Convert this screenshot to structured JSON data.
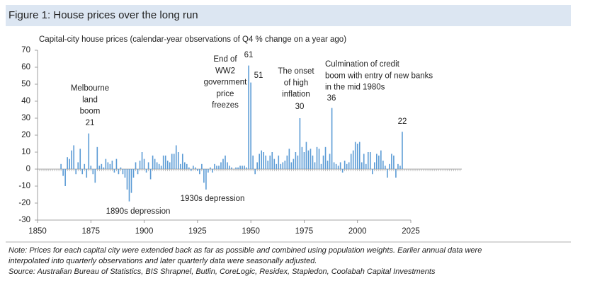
{
  "figure_title": "Figure 1: House prices over the long run",
  "chart_data": {
    "type": "bar",
    "subtitle": "Capital-city house prices (calendar-year observations of Q4 % change on a year ago)",
    "x": [
      1861,
      1862,
      1863,
      1864,
      1865,
      1866,
      1867,
      1868,
      1869,
      1870,
      1871,
      1872,
      1873,
      1874,
      1875,
      1876,
      1877,
      1878,
      1879,
      1880,
      1881,
      1882,
      1883,
      1884,
      1885,
      1886,
      1887,
      1888,
      1889,
      1890,
      1891,
      1892,
      1893,
      1894,
      1895,
      1896,
      1897,
      1898,
      1899,
      1900,
      1901,
      1902,
      1903,
      1904,
      1905,
      1906,
      1907,
      1908,
      1909,
      1910,
      1911,
      1912,
      1913,
      1914,
      1915,
      1916,
      1917,
      1918,
      1919,
      1920,
      1921,
      1922,
      1923,
      1924,
      1925,
      1926,
      1927,
      1928,
      1929,
      1930,
      1931,
      1932,
      1933,
      1934,
      1935,
      1936,
      1937,
      1938,
      1939,
      1940,
      1941,
      1942,
      1943,
      1944,
      1945,
      1946,
      1947,
      1948,
      1949,
      1950,
      1951,
      1952,
      1953,
      1954,
      1955,
      1956,
      1957,
      1958,
      1959,
      1960,
      1961,
      1962,
      1963,
      1964,
      1965,
      1966,
      1967,
      1968,
      1969,
      1970,
      1971,
      1972,
      1973,
      1974,
      1975,
      1976,
      1977,
      1978,
      1979,
      1980,
      1981,
      1982,
      1983,
      1984,
      1985,
      1986,
      1987,
      1988,
      1989,
      1990,
      1991,
      1992,
      1993,
      1994,
      1995,
      1996,
      1997,
      1998,
      1999,
      2000,
      2001,
      2002,
      2003,
      2004,
      2005,
      2006,
      2007,
      2008,
      2009,
      2010,
      2011,
      2012,
      2013,
      2014,
      2015,
      2016,
      2017,
      2018,
      2019,
      2020,
      2021
    ],
    "values": [
      3,
      -4,
      -10,
      7,
      6,
      11,
      14,
      -3,
      4,
      12,
      -3,
      3,
      -5,
      21,
      2,
      -3,
      -8,
      13,
      2,
      3,
      1,
      6,
      4,
      3,
      5,
      -2,
      6,
      -3,
      1,
      -3,
      -5,
      -12,
      -19,
      -14,
      -5,
      4,
      -3,
      5,
      10,
      6,
      -2,
      4,
      -6,
      8,
      6,
      4,
      3,
      2,
      8,
      8,
      5,
      4,
      9,
      9,
      14,
      10,
      3,
      9,
      4,
      3,
      1,
      -1,
      2,
      1,
      -1,
      -3,
      3,
      -8,
      -12,
      -2,
      1,
      -2,
      3,
      2,
      2,
      4,
      6,
      8,
      4,
      2,
      1,
      0,
      1,
      1,
      2,
      2,
      2,
      1,
      61,
      51,
      8,
      -3,
      4,
      9,
      11,
      10,
      8,
      5,
      8,
      10,
      6,
      3,
      8,
      3,
      4,
      5,
      8,
      12,
      4,
      6,
      10,
      8,
      30,
      13,
      10,
      16,
      11,
      12,
      8,
      4,
      13,
      12,
      3,
      8,
      13,
      5,
      9,
      36,
      4,
      3,
      2,
      4,
      -2,
      5,
      3,
      4,
      9,
      11,
      16,
      15,
      16,
      4,
      9,
      3,
      10,
      10,
      -3,
      4,
      9,
      8,
      11,
      5,
      2,
      -5,
      3,
      9,
      8,
      -5,
      3,
      2,
      22
    ],
    "color": "#5b9bd5",
    "xlim": [
      1850,
      2025
    ],
    "xticks": [
      1850,
      1875,
      1900,
      1925,
      1950,
      1975,
      2000,
      2025
    ],
    "ylim": [
      -30,
      70
    ],
    "yticks": [
      -30,
      -20,
      -10,
      0,
      10,
      20,
      30,
      40,
      50,
      60,
      70
    ],
    "annotations": [
      {
        "lines": [
          "Melbourne",
          "land",
          "boom"
        ]
      },
      {
        "lines": [
          "1890s depression"
        ]
      },
      {
        "lines": [
          "1930s depression"
        ]
      },
      {
        "lines": [
          "End of",
          "WW2",
          "government",
          "price",
          "freezes"
        ]
      },
      {
        "lines": [
          "The onset",
          "of high",
          "inflation"
        ]
      },
      {
        "lines": [
          "Culmination of credit",
          "boom with entry of new banks",
          "in the mid 1980s"
        ]
      }
    ]
  },
  "notes": [
    "Note: Prices for each capital city were extended back as far as possible and combined using population weights. Earlier annual data were",
    "interpolated into quarterly observations and later quarterly data were seasonally adjusted.",
    "Source: Australian Bureau of Statistics, BIS Shrapnel, Butlin, CoreLogic, Residex, Stapledon, Coolabah Capital Investments"
  ]
}
